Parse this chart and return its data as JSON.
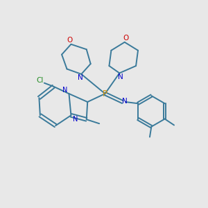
{
  "background_color": "#e8e8e8",
  "bond_color": "#3a7a9a",
  "p_color": "#d4940a",
  "o_color": "#cc0000",
  "n_color": "#0000cc",
  "cl_color": "#228B22",
  "figsize": [
    3.0,
    3.0
  ],
  "dpi": 100,
  "xlim": [
    0,
    10
  ],
  "ylim": [
    0,
    10
  ]
}
